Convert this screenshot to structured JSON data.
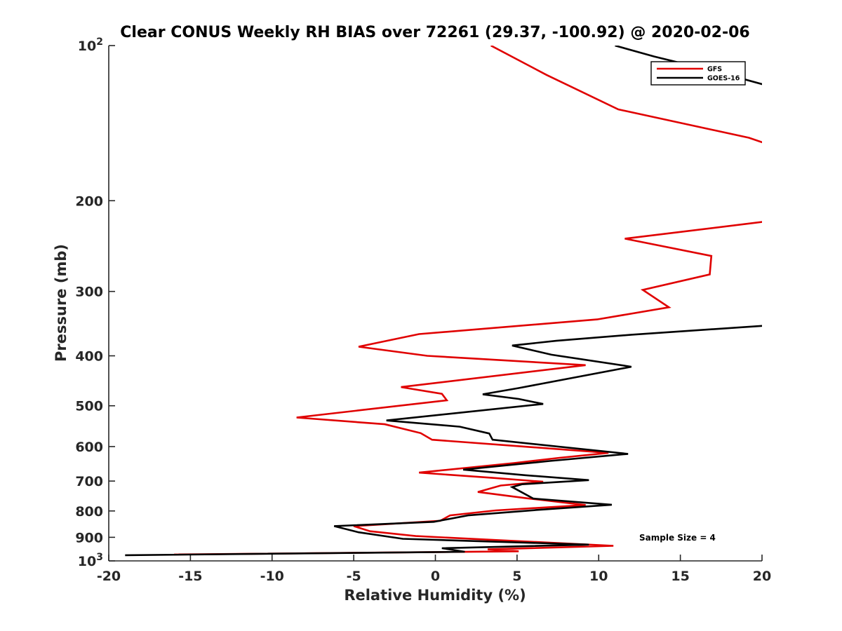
{
  "chart_data": {
    "type": "line",
    "title": "Clear CONUS Weekly RH BIAS over 72261 (29.37, -100.92) @ 2020-02-06",
    "xlabel": "Relative Humidity (%)",
    "ylabel": "Pressure (mb)",
    "xlim": [
      -20,
      20
    ],
    "ylim": [
      100,
      1000
    ],
    "yscale": "log",
    "y_reversed": true,
    "grid": false,
    "legend_position": "top-right",
    "annotation": "Sample Size = 4",
    "x_ticks": [
      "-20",
      "-15",
      "-10",
      "-5",
      "0",
      "5",
      "10",
      "15",
      "20"
    ],
    "y_ticks": [
      {
        "value": 100,
        "base": "10",
        "exp": "2"
      },
      {
        "value": 200,
        "label": "200"
      },
      {
        "value": 300,
        "label": "300"
      },
      {
        "value": 400,
        "label": "400"
      },
      {
        "value": 500,
        "label": "500"
      },
      {
        "value": 600,
        "label": "600"
      },
      {
        "value": 700,
        "label": "700"
      },
      {
        "value": 800,
        "label": "800"
      },
      {
        "value": 900,
        "label": "900"
      },
      {
        "value": 1000,
        "base": "10",
        "exp": "3"
      }
    ],
    "series": [
      {
        "name": "GFS",
        "color": "#e00000",
        "points": [
          [
            3.4,
            100
          ],
          [
            6.8,
            114
          ],
          [
            11.2,
            133
          ],
          [
            19.2,
            151
          ],
          [
            20.5,
            156
          ],
          [
            20.5,
            219
          ],
          [
            11.6,
            237
          ],
          [
            16.9,
            256
          ],
          [
            16.8,
            278
          ],
          [
            12.7,
            298
          ],
          [
            14.3,
            322
          ],
          [
            9.9,
            340
          ],
          [
            -1.0,
            363
          ],
          [
            -4.7,
            384
          ],
          [
            -0.5,
            400
          ],
          [
            9.2,
            417
          ],
          [
            -2.1,
            460
          ],
          [
            0.4,
            474
          ],
          [
            0.7,
            488
          ],
          [
            -8.5,
            527
          ],
          [
            -3.1,
            543
          ],
          [
            -0.9,
            565
          ],
          [
            -0.2,
            582
          ],
          [
            10.6,
            617
          ],
          [
            7.6,
            631
          ],
          [
            4.8,
            646
          ],
          [
            -1.0,
            674
          ],
          [
            3.5,
            690
          ],
          [
            6.6,
            702
          ],
          [
            4.0,
            714
          ],
          [
            2.6,
            735
          ],
          [
            5.6,
            756
          ],
          [
            9.2,
            779
          ],
          [
            3.7,
            798
          ],
          [
            0.9,
            816
          ],
          [
            0.3,
            836
          ],
          [
            -5.0,
            856
          ],
          [
            -4.0,
            876
          ],
          [
            -1.2,
            895
          ],
          [
            10.9,
            935
          ],
          [
            3.2,
            950
          ],
          [
            5.1,
            958
          ],
          [
            -16.0,
            972
          ]
        ]
      },
      {
        "name": "GOES-16",
        "color": "#000000",
        "points": [
          [
            11.0,
            100
          ],
          [
            13.4,
            105
          ],
          [
            17.5,
            113
          ],
          [
            20.5,
            120
          ],
          [
            20.5,
            349
          ],
          [
            12.0,
            364
          ],
          [
            7.4,
            374
          ],
          [
            4.7,
            382
          ],
          [
            7.1,
            398
          ],
          [
            12.0,
            420
          ],
          [
            5.1,
            462
          ],
          [
            2.9,
            475
          ],
          [
            5.1,
            485
          ],
          [
            6.6,
            496
          ],
          [
            -3.0,
            534
          ],
          [
            1.5,
            549
          ],
          [
            3.3,
            566
          ],
          [
            3.5,
            582
          ],
          [
            11.8,
            620
          ],
          [
            7.0,
            640
          ],
          [
            1.7,
            665
          ],
          [
            5.5,
            682
          ],
          [
            9.4,
            697
          ],
          [
            5.3,
            710
          ],
          [
            4.7,
            719
          ],
          [
            6.0,
            757
          ],
          [
            10.8,
            778
          ],
          [
            6.3,
            796
          ],
          [
            2.0,
            816
          ],
          [
            -0.1,
            840
          ],
          [
            -6.2,
            856
          ],
          [
            -4.7,
            880
          ],
          [
            -2.0,
            906
          ],
          [
            9.4,
            930
          ],
          [
            0.4,
            945
          ],
          [
            1.8,
            960
          ],
          [
            -19.0,
            975
          ]
        ]
      }
    ]
  }
}
